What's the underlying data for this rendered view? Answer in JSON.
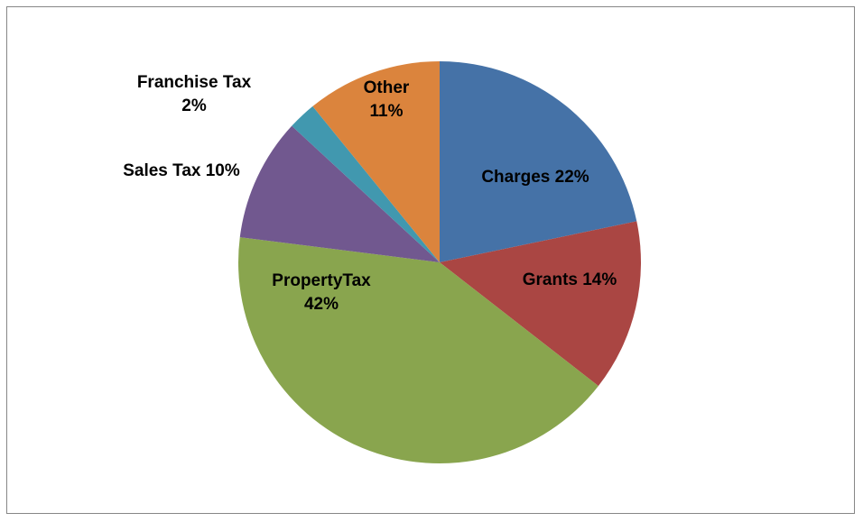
{
  "chart_data": {
    "type": "pie",
    "title": "",
    "slices": [
      {
        "label_lines": [
          "Charges 22%"
        ],
        "name": "Charges",
        "value": 22,
        "color": "#4572A7"
      },
      {
        "label_lines": [
          "Grants 14%"
        ],
        "name": "Grants",
        "value": 14,
        "color": "#AA4643"
      },
      {
        "label_lines": [
          "PropertyTax",
          "42%"
        ],
        "name": "PropertyTax",
        "value": 42,
        "color": "#89A54E"
      },
      {
        "label_lines": [
          "Sales Tax 10%"
        ],
        "name": "Sales Tax",
        "value": 10,
        "color": "#71588F"
      },
      {
        "label_lines": [
          "Franchise Tax",
          "2%"
        ],
        "name": "Franchise Tax",
        "value": 2.3,
        "color": "#4198AF"
      },
      {
        "label_lines": [
          "Other",
          "11%"
        ],
        "name": "Other",
        "value": 11,
        "color": "#DB843D"
      }
    ],
    "start_angle": "12 o'clock",
    "direction": "clockwise",
    "legend": "none",
    "data_labels": "category name and percentage"
  }
}
